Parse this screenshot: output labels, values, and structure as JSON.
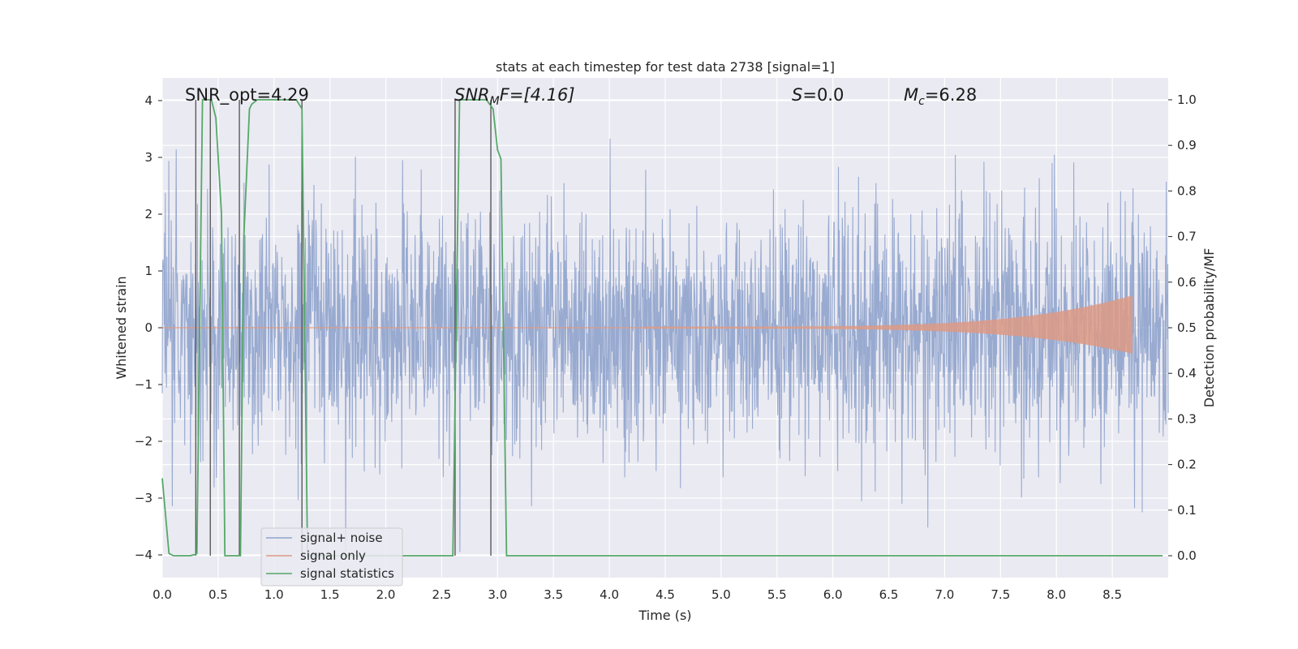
{
  "chart_data": {
    "type": "line",
    "title": "stats at each timestep for test data 2738 [signal=1]",
    "xlabel": "Time (s)",
    "ylabel": "Whitened strain",
    "y2label": "Detection probability/MF",
    "xlim": [
      0,
      9
    ],
    "ylim": [
      -4.4,
      4.4
    ],
    "y2lim": [
      -0.048,
      1.048
    ],
    "x_ticks": [
      "0.0",
      "0.5",
      "1.0",
      "1.5",
      "2.0",
      "2.5",
      "3.0",
      "3.5",
      "4.0",
      "4.5",
      "5.0",
      "5.5",
      "6.0",
      "6.5",
      "7.0",
      "7.5",
      "8.0",
      "8.5"
    ],
    "y_ticks": [
      "4",
      "3",
      "2",
      "1",
      "0",
      "−1",
      "−2",
      "−3",
      "−4"
    ],
    "y2_ticks": [
      "1.0",
      "0.9",
      "0.8",
      "0.7",
      "0.6",
      "0.5",
      "0.4",
      "0.3",
      "0.2",
      "0.1",
      "0.0"
    ],
    "grid": true,
    "legend_position": "lower-left",
    "annotations": {
      "snr_opt": "SNR_opt=4.29",
      "snr_mf_base": "SNR",
      "snr_mf_sub": "M",
      "snr_mf_rest": "F=[4.16]",
      "s_base": "S",
      "s_rest": "=0.0",
      "mc_base": "M",
      "mc_sub": "c",
      "mc_rest": "=6.28"
    },
    "series": [
      {
        "name": "signal+ noise",
        "color": "#8fa3cc",
        "description_values": "whitened noise, amplitude roughly within [-4, 4]",
        "x_range": [
          0,
          9
        ],
        "approx_std": 1.0
      },
      {
        "name": "signal only",
        "color": "#dd9a85",
        "chirp": {
          "x_start": 4.3,
          "x_end": 8.68,
          "peak_amplitude": 0.55
        }
      },
      {
        "name": "signal statistics",
        "color": "#55a868",
        "axis": "right",
        "x": [
          0.0,
          0.06,
          0.1,
          0.2,
          0.25,
          0.3,
          0.31,
          0.36,
          0.4,
          0.44,
          0.48,
          0.53,
          0.56,
          0.7,
          0.73,
          0.78,
          0.8,
          0.85,
          1.2,
          1.25,
          1.3,
          2.6,
          2.63,
          2.66,
          2.9,
          2.96,
          3.0,
          3.03,
          3.08,
          8.95
        ],
        "y": [
          0.17,
          0.005,
          0.0,
          0.0,
          0.0,
          0.003,
          0.005,
          1.0,
          1.0,
          1.0,
          0.96,
          0.75,
          0.0,
          0.0,
          0.7,
          0.98,
          0.99,
          1.0,
          1.0,
          0.98,
          0.0,
          0.0,
          0.52,
          1.0,
          1.0,
          0.98,
          0.89,
          0.87,
          0.0,
          0.0
        ]
      }
    ],
    "vertical_lines": [
      0.3,
      0.43,
      0.69,
      1.25,
      2.62,
      2.94
    ]
  }
}
